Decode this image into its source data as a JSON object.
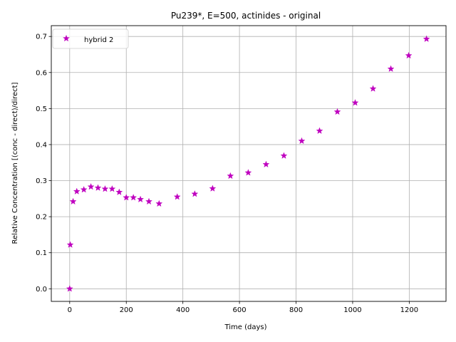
{
  "chart_data": {
    "type": "scatter",
    "title": "Pu239*, E=500, actinides - original",
    "xlabel": "Time (days)",
    "ylabel": "Relative Concentration [(conc - direct)/direct]",
    "xlim": [
      -65,
      1330
    ],
    "ylim": [
      -0.035,
      0.73
    ],
    "xticks": [
      0,
      200,
      400,
      600,
      800,
      1000,
      1200
    ],
    "yticks": [
      0.0,
      0.1,
      0.2,
      0.3,
      0.4,
      0.5,
      0.6,
      0.7
    ],
    "grid": true,
    "legend_position": "top-left",
    "series": [
      {
        "name": "hybrid 2",
        "color": "#bf00bf",
        "marker": "star",
        "x": [
          0,
          2,
          12,
          25,
          50,
          75,
          100,
          125,
          150,
          175,
          200,
          225,
          250,
          280,
          316,
          380,
          442,
          505,
          568,
          631,
          694,
          757,
          820,
          883,
          946,
          1009,
          1072,
          1135,
          1198,
          1261
        ],
        "y": [
          0.0,
          0.122,
          0.242,
          0.27,
          0.275,
          0.283,
          0.28,
          0.277,
          0.277,
          0.268,
          0.253,
          0.253,
          0.248,
          0.242,
          0.236,
          0.255,
          0.263,
          0.278,
          0.313,
          0.322,
          0.345,
          0.369,
          0.41,
          0.438,
          0.491,
          0.516,
          0.555,
          0.61,
          0.647,
          0.693
        ]
      }
    ]
  }
}
